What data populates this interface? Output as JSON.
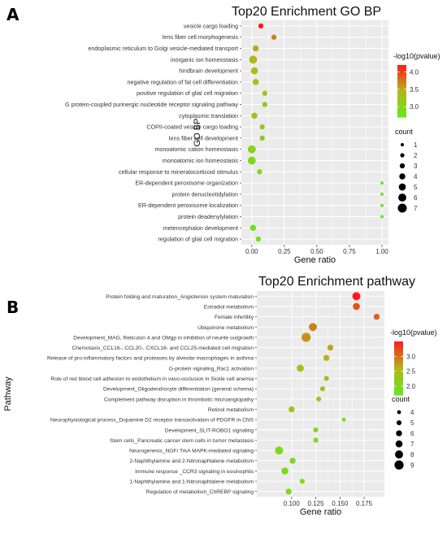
{
  "colors": {
    "panel_bg": "#ebebeb",
    "grid": "#ffffff",
    "low": "#66e81f",
    "mid": "#b3b51a",
    "high": "#ff1a1a"
  },
  "chart_data": [
    {
      "panel_letter": "A",
      "type": "scatter",
      "title": "Top20 Enrichment GO BP",
      "xlabel": "Gene ratio",
      "ylabel": "GO BP",
      "xlim": [
        -0.08,
        1.05
      ],
      "xticks": [
        0.0,
        0.25,
        0.5,
        0.75,
        1.0
      ],
      "xtick_labels": [
        "0.00",
        "0.25",
        "0.50",
        "0.75",
        "1.00"
      ],
      "grid": true,
      "legend_position": "right",
      "color_legend": {
        "title": "-log10(pvalue)",
        "range": [
          2.7,
          4.2
        ],
        "ticks": [
          3.0,
          3.5,
          4.0
        ],
        "tick_labels": [
          "3.0",
          "3.5",
          "4.0"
        ]
      },
      "size_legend": {
        "title": "count",
        "values": [
          1,
          2,
          3,
          4,
          5,
          6,
          7
        ],
        "labels": [
          "1",
          "2",
          "3",
          "4",
          "5",
          "6",
          "7"
        ]
      },
      "size_range": [
        1,
        7
      ],
      "categories": [
        "vesicle cargo loading",
        "lens fiber cell morphogenesis",
        "endoplasmic reticulum to Golgi vesicle-mediated transport",
        "inorganic ion homeostasis",
        "hindbrain development",
        "negative regulation of fat cell differentiation",
        "positive regulation of glial cell migration",
        "G protein-coupled purinergic nucleotide receptor signaling pathway",
        "cytoplasmic translation",
        "COPII-coated vesicle cargo loading",
        "lens fiber cell development",
        "monoatomic cation homeostasis",
        "monoatomic ion homeostasis",
        "cellular response to mineralocorticoid stimulus",
        "ER-dependent peroxisome organization",
        "protein denucleotidylation",
        "ER-dependent peroxisome localization",
        "protein deadenylylation",
        "metencephalon development",
        "regulation of glial cell migration"
      ],
      "x": [
        0.07,
        0.17,
        0.03,
        0.01,
        0.02,
        0.03,
        0.1,
        0.1,
        0.02,
        0.08,
        0.08,
        0.0,
        0.0,
        0.06,
        1.0,
        1.0,
        1.0,
        1.0,
        0.01,
        0.05
      ],
      "count": [
        3,
        3,
        4,
        6,
        5,
        4,
        3,
        3,
        4,
        3,
        3,
        6,
        6,
        3,
        1,
        1,
        1,
        1,
        4,
        3
      ],
      "color_value": [
        4.2,
        3.7,
        3.5,
        3.4,
        3.35,
        3.3,
        3.3,
        3.25,
        3.2,
        3.15,
        3.15,
        3.0,
        3.0,
        2.95,
        2.8,
        2.8,
        2.8,
        2.8,
        2.8,
        2.8
      ]
    },
    {
      "panel_letter": "B",
      "type": "scatter",
      "title": "Top20 Enrichment pathway",
      "xlabel": "Gene ratio",
      "ylabel": "Pathway",
      "xlim": [
        0.064,
        0.196
      ],
      "xticks": [
        0.1,
        0.125,
        0.15,
        0.175
      ],
      "xtick_labels": [
        "0.100",
        "0.125",
        "0.150",
        "0.175"
      ],
      "grid": true,
      "legend_position": "right",
      "color_legend": {
        "title": "-log10(pvalue)",
        "range": [
          1.7,
          3.5
        ],
        "ticks": [
          2.0,
          2.5,
          3.0
        ],
        "tick_labels": [
          "2.0",
          "2.5",
          "3.0"
        ]
      },
      "size_legend": {
        "title": "count",
        "values": [
          4,
          5,
          6,
          7,
          8,
          9
        ],
        "labels": [
          "4",
          "5",
          "6",
          "7",
          "8",
          "9"
        ]
      },
      "size_range": [
        4,
        9
      ],
      "categories": [
        "Protein folding and maturation_Angiotensin system maturation",
        "Estradiol metabolism",
        "Female infertility",
        "Ubiquinone metabolism",
        "Development_MAG, Reticulon 4 and OMgp in inhibition of neurite outgrowth",
        "Chemotaxis_CCL16-, CCL20-, CXCL16- and CCL25-mediated cell migration",
        "Release of pro-inflammatory factors and proteases by alveolar macrophages in asthma",
        "G-protein signaling_Rac1 activation",
        "Role of red blood cell adhesion to endothelium in vaso-occlusion in Sickle cell anemia",
        "Development_Oligodendrocyte differentiation (general schema)",
        "Complement pathway disruption in thrombotic microangiopathy",
        "Retinol metabolism",
        "Neurophysiological process_Dopamine D2 receptor transactivation of PDGFR in CNS",
        "Development_SLIT-ROBO1 signaling",
        "Stem cells_Pancreatic cancer stem cells in tumor metastasis",
        "Neurogenesis_NGF/ TrkA MAPK-mediated signaling",
        "2-Naphthylamine and 2-Nitronaphtalene metabolism",
        "Immune response _CCR3 signaling in eosinophils",
        "1-Naphthylamine and 1-Nitronaphtalene metabolism",
        "Regulation of metabolism_ChREBP signaling"
      ],
      "x": [
        0.167,
        0.167,
        0.188,
        0.122,
        0.115,
        0.14,
        0.136,
        0.109,
        0.136,
        0.132,
        0.128,
        0.1,
        0.154,
        0.125,
        0.125,
        0.087,
        0.101,
        0.093,
        0.111,
        0.097
      ],
      "count": [
        8,
        7,
        6,
        8,
        9,
        6,
        6,
        7,
        5,
        5,
        5,
        6,
        4,
        5,
        5,
        8,
        6,
        7,
        5,
        6
      ],
      "color_value": [
        3.5,
        3.2,
        3.1,
        2.9,
        2.8,
        2.7,
        2.6,
        2.5,
        2.4,
        2.4,
        2.4,
        2.3,
        2.0,
        2.0,
        2.0,
        2.0,
        2.0,
        2.0,
        2.0,
        2.0
      ]
    }
  ]
}
